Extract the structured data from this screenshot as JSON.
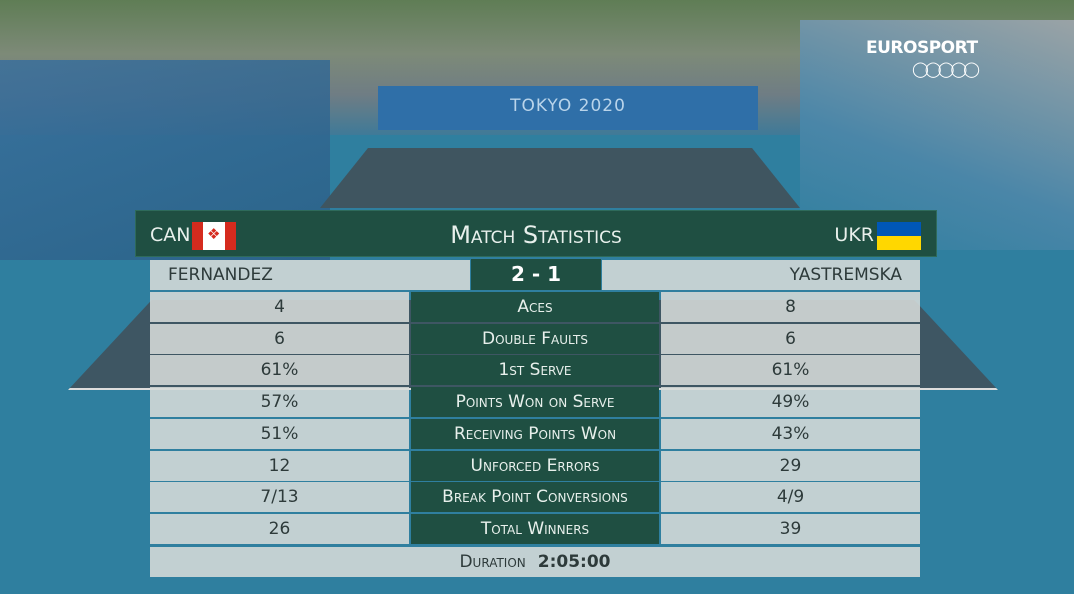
{
  "broadcaster": "EUROSPORT",
  "venue_banner": "TOKYO 2020",
  "header": {
    "title": "Match Statistics",
    "left_country": "CAN",
    "right_country": "UKR"
  },
  "players": {
    "left": "FERNANDEZ",
    "right": "YASTREMSKA"
  },
  "score": "2 - 1",
  "stats": [
    {
      "label": "Aces",
      "left": "4",
      "right": "8"
    },
    {
      "label": "Double Faults",
      "left": "6",
      "right": "6"
    },
    {
      "label": "1st Serve",
      "left": "61%",
      "right": "61%"
    },
    {
      "label": "Points Won on Serve",
      "left": "57%",
      "right": "49%"
    },
    {
      "label": "Receiving Points Won",
      "left": "51%",
      "right": "43%"
    },
    {
      "label": "Unforced Errors",
      "left": "12",
      "right": "29"
    },
    {
      "label": "Break Point Conversions",
      "left": "7/13",
      "right": "4/9"
    },
    {
      "label": "Total Winners",
      "left": "26",
      "right": "39"
    }
  ],
  "duration": {
    "label": "Duration",
    "value": "2:05:00"
  },
  "colors": {
    "panel_green": "#1f4f42",
    "panel_gray": "#d7dcda",
    "court_blue": "#2f7f9f"
  }
}
